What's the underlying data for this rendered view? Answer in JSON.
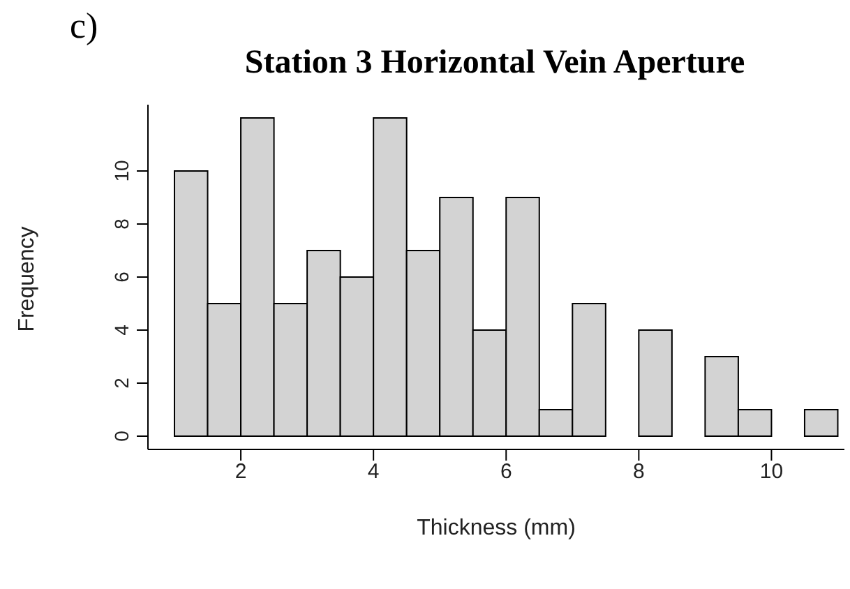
{
  "chart_data": {
    "type": "histogram",
    "title": "Station 3 Horizontal Vein Aperture",
    "xlabel": "Thickness (mm)",
    "ylabel": "Frequency",
    "annotations": [
      "c)"
    ],
    "bins": [
      1,
      1.5,
      2,
      2.5,
      3,
      3.5,
      4,
      4.5,
      5,
      5.5,
      6,
      6.5,
      7,
      7.5,
      8,
      8.5,
      9,
      9.5,
      10,
      10.5,
      11
    ],
    "values": [
      10,
      5,
      12,
      5,
      7,
      6,
      12,
      7,
      9,
      4,
      9,
      1,
      5,
      0,
      4,
      0,
      3,
      1,
      0,
      1
    ],
    "color": "#d3d3d3",
    "xlim": [
      0.6,
      11.1
    ],
    "ylim": [
      -0.5,
      12.5
    ],
    "xticks": [
      2,
      4,
      6,
      8,
      10
    ],
    "yticks": [
      0,
      2,
      4,
      6,
      8,
      10
    ]
  }
}
